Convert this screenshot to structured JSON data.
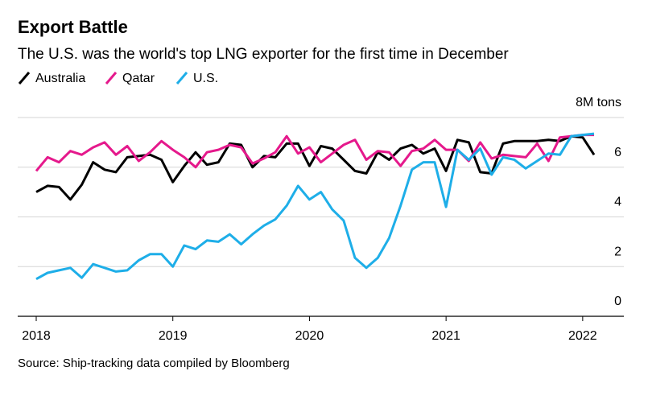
{
  "chart_data": {
    "type": "line",
    "title": "Export Battle",
    "subtitle": "The U.S. was the world's top LNG exporter for the first time in December",
    "source": "Source: Ship-tracking data compiled by Bloomberg",
    "categories": [
      "2018",
      null,
      null,
      null,
      null,
      null,
      null,
      null,
      null,
      null,
      null,
      null,
      "2019",
      null,
      null,
      null,
      null,
      null,
      null,
      null,
      null,
      null,
      null,
      null,
      "2020",
      null,
      null,
      null,
      null,
      null,
      null,
      null,
      null,
      null,
      null,
      null,
      "2021",
      null,
      null,
      null,
      null,
      null,
      null,
      null,
      null,
      null,
      null,
      null,
      "2022",
      null
    ],
    "series": [
      {
        "name": "Australia",
        "color": "#000000",
        "values": [
          5.0,
          5.25,
          5.2,
          4.7,
          5.3,
          6.2,
          5.9,
          5.8,
          6.4,
          6.45,
          6.5,
          6.3,
          5.4,
          6.05,
          6.6,
          6.1,
          6.2,
          6.95,
          6.9,
          6.0,
          6.45,
          6.4,
          6.95,
          6.95,
          6.05,
          6.85,
          6.75,
          6.3,
          5.85,
          5.75,
          6.6,
          6.3,
          6.75,
          6.9,
          6.55,
          6.75,
          5.85,
          7.1,
          7.0,
          5.8,
          5.75,
          6.95,
          7.05,
          7.05,
          7.05,
          7.1,
          7.05,
          7.25,
          7.2,
          6.5
        ]
      },
      {
        "name": "Qatar",
        "color": "#e5198c",
        "values": [
          5.85,
          6.4,
          6.2,
          6.65,
          6.5,
          6.8,
          7.0,
          6.5,
          6.85,
          6.25,
          6.6,
          7.05,
          6.7,
          6.4,
          6.0,
          6.6,
          6.7,
          6.9,
          6.8,
          6.15,
          6.35,
          6.6,
          7.25,
          6.55,
          6.8,
          6.2,
          6.55,
          6.9,
          7.1,
          6.3,
          6.65,
          6.6,
          6.05,
          6.65,
          6.75,
          7.1,
          6.7,
          6.7,
          6.25,
          7.0,
          6.35,
          6.5,
          6.45,
          6.4,
          6.95,
          6.25,
          7.2,
          7.25,
          7.3,
          7.3
        ]
      },
      {
        "name": "U.S.",
        "color": "#1eaee8",
        "values": [
          1.5,
          1.75,
          1.85,
          1.95,
          1.55,
          2.1,
          1.95,
          1.8,
          1.85,
          2.25,
          2.5,
          2.5,
          2.0,
          2.85,
          2.7,
          3.05,
          3.0,
          3.3,
          2.9,
          3.3,
          3.65,
          3.9,
          4.45,
          5.25,
          4.7,
          5.0,
          4.3,
          3.85,
          2.35,
          1.95,
          2.35,
          3.15,
          4.45,
          5.9,
          6.2,
          6.2,
          4.4,
          6.7,
          6.3,
          6.75,
          5.7,
          6.4,
          6.3,
          5.95,
          6.25,
          6.55,
          6.5,
          7.25,
          7.3,
          7.35
        ]
      }
    ],
    "ylim": [
      0,
      8
    ],
    "yticks": [
      0,
      2,
      4,
      6,
      {
        "value": 8,
        "label": "8M tons"
      }
    ],
    "grid": true
  }
}
